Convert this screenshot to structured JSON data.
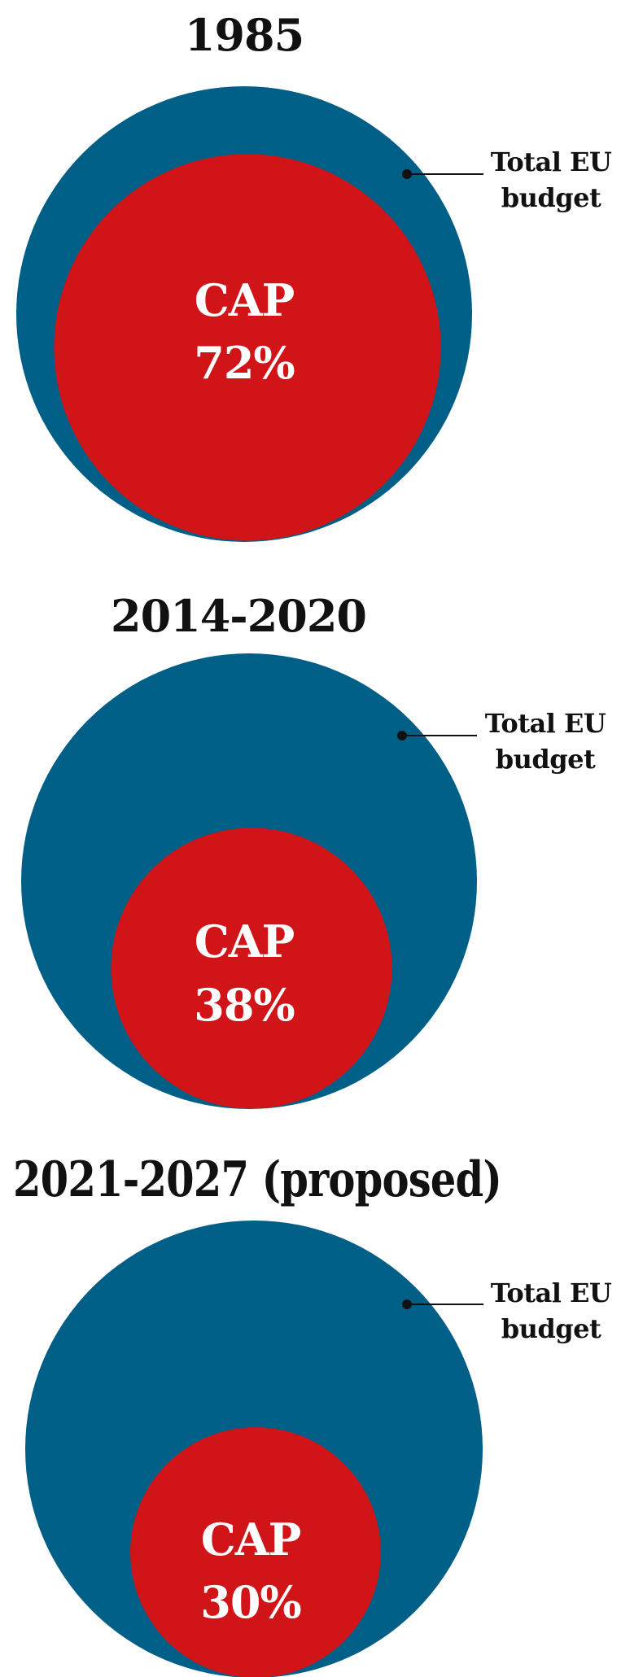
{
  "chart_data": [
    {
      "type": "nested-circle",
      "title": "1985",
      "outer_label_lines": [
        "Total EU",
        "budget"
      ],
      "inner_label": "CAP",
      "inner_value_label": "72%",
      "inner_share": 0.72,
      "colors": {
        "outer": "#005f87",
        "inner": "#d01417"
      }
    },
    {
      "type": "nested-circle",
      "title": "2014-2020",
      "outer_label_lines": [
        "Total EU",
        "budget"
      ],
      "inner_label": "CAP",
      "inner_value_label": "38%",
      "inner_share": 0.38,
      "colors": {
        "outer": "#005f87",
        "inner": "#d01417"
      }
    },
    {
      "type": "nested-circle",
      "title": "2021-2027 (proposed)",
      "outer_label_lines": [
        "Total EU",
        "budget"
      ],
      "inner_label": "CAP",
      "inner_value_label": "30%",
      "inner_share": 0.3,
      "colors": {
        "outer": "#005f87",
        "inner": "#d01417"
      }
    }
  ]
}
